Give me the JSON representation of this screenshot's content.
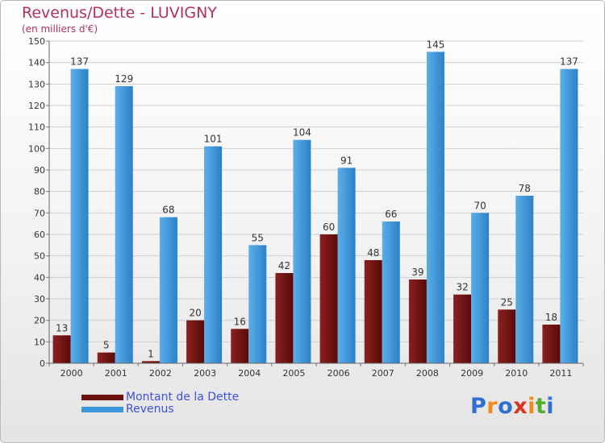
{
  "title": "Revenus/Dette - LUVIGNY",
  "subtitle": "(en milliers d'€)",
  "logo": {
    "text": "Proxiti",
    "letter_colors": [
      "#2f6fd0",
      "#f08a1c",
      "#2f6fd0",
      "#d9341e",
      "#f08a1c",
      "#4fae2c",
      "#2f6fd0"
    ]
  },
  "colors": {
    "dette": "#7a1616",
    "revenus": "#3c96dc",
    "axis_text": "#333333",
    "grid": "#cfcfcf"
  },
  "legend": [
    {
      "label": "Montant de la Dette",
      "color": "#6b0f0f"
    },
    {
      "label": "Revenus",
      "color": "#3c96dc"
    }
  ],
  "chart_data": {
    "type": "bar",
    "categories": [
      "2000",
      "2001",
      "2002",
      "2003",
      "2004",
      "2005",
      "2006",
      "2007",
      "2008",
      "2009",
      "2010",
      "2011"
    ],
    "series": [
      {
        "name": "Montant de la Dette",
        "values": [
          13,
          5,
          1,
          20,
          16,
          42,
          60,
          48,
          39,
          32,
          25,
          18
        ]
      },
      {
        "name": "Revenus",
        "values": [
          137,
          129,
          68,
          101,
          55,
          104,
          91,
          66,
          145,
          70,
          78,
          137
        ]
      }
    ],
    "ylim": [
      0,
      150
    ],
    "yticks": [
      0,
      10,
      20,
      30,
      40,
      50,
      60,
      70,
      80,
      90,
      100,
      110,
      120,
      130,
      140,
      150
    ],
    "grid": true,
    "data_labels": true,
    "legend_position": "bottom-left"
  }
}
